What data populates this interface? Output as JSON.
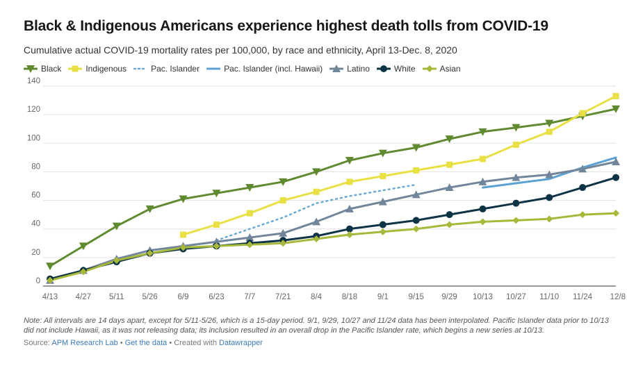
{
  "title": "Black & Indigenous Americans experience highest death tolls from COVID-19",
  "subtitle": "Cumulative actual COVID-19 mortality rates per 100,000, by race and ethnicity, April 13-Dec. 8, 2020",
  "note": "Note: All intervals are 14 days apart, except for 5/11-5/26, which is a 15-day period. 9/1, 9/29, 10/27 and 11/24 data has been interpolated. Pacific Islander data prior to 10/13 did not include Hawaii, as it was not releasing data; its inclusion resulted in an overall drop in the Pacific Islander rate, which begins a new series at 10/13.",
  "source": {
    "prefix": "Source: ",
    "org": "APM Research Lab",
    "sep1": " • ",
    "get_data": "Get the data",
    "sep2": " • Created with ",
    "tool": "Datawrapper"
  },
  "chart_data": {
    "type": "line",
    "x": [
      "4/13",
      "4/27",
      "5/11",
      "5/26",
      "6/9",
      "6/23",
      "7/7",
      "7/21",
      "8/4",
      "8/18",
      "9/1",
      "9/15",
      "9/29",
      "10/13",
      "10/27",
      "11/10",
      "11/24",
      "12/8"
    ],
    "ylim": [
      0,
      140
    ],
    "yticks": [
      0,
      20,
      40,
      60,
      80,
      100,
      120,
      140
    ],
    "grid": true,
    "legend_position": "top-left",
    "series": [
      {
        "name": "Black",
        "color": "#5f8a2f",
        "marker": "triangle-down",
        "dashed": false,
        "values": [
          14,
          28,
          42,
          54,
          61,
          65,
          69,
          73,
          80,
          88,
          93,
          97,
          103,
          108,
          111,
          114,
          119,
          124
        ]
      },
      {
        "name": "Indigenous",
        "color": "#e8e044",
        "marker": "square",
        "dashed": false,
        "values": [
          null,
          null,
          null,
          null,
          36,
          43,
          51,
          60,
          66,
          73,
          77,
          81,
          85,
          89,
          99,
          108,
          121,
          133
        ]
      },
      {
        "name": "Pac. Islander",
        "color": "#6aa9d4",
        "marker": "none",
        "dashed": true,
        "values": [
          null,
          null,
          null,
          null,
          null,
          32,
          40,
          48,
          58,
          63,
          67,
          71,
          null,
          null,
          null,
          null,
          null,
          null
        ]
      },
      {
        "name": "Pac. Islander (incl. Hawaii)",
        "color": "#5aa2d6",
        "marker": "none",
        "dashed": false,
        "values": [
          null,
          null,
          null,
          null,
          null,
          null,
          null,
          null,
          null,
          null,
          null,
          null,
          null,
          69,
          72,
          75,
          83,
          90
        ]
      },
      {
        "name": "Latino",
        "color": "#72869b",
        "marker": "triangle-up",
        "dashed": false,
        "values": [
          4,
          11,
          19,
          25,
          28,
          31,
          34,
          37,
          45,
          54,
          59,
          64,
          69,
          73,
          76,
          78,
          82,
          87
        ]
      },
      {
        "name": "White",
        "color": "#0d3346",
        "marker": "circle",
        "dashed": false,
        "values": [
          5,
          11,
          17,
          23,
          26,
          28,
          30,
          32,
          35,
          40,
          43,
          46,
          50,
          54,
          58,
          62,
          69,
          76
        ]
      },
      {
        "name": "Asian",
        "color": "#a8b83a",
        "marker": "diamond",
        "dashed": false,
        "values": [
          4,
          10,
          18,
          23,
          27,
          28,
          29,
          30,
          33,
          36,
          38,
          40,
          43,
          45,
          46,
          47,
          50,
          51
        ]
      }
    ]
  }
}
